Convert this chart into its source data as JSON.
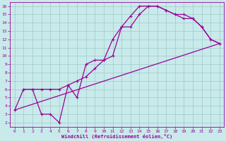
{
  "xlabel": "Windchill (Refroidissement éolien,°C)",
  "bg_color": "#c8eaea",
  "grid_color": "#a0c8c8",
  "line_color": "#990099",
  "xlim": [
    -0.5,
    23.5
  ],
  "ylim": [
    1.5,
    16.5
  ],
  "xticks": [
    0,
    1,
    2,
    3,
    4,
    5,
    6,
    7,
    8,
    9,
    10,
    11,
    12,
    13,
    14,
    15,
    16,
    17,
    18,
    19,
    20,
    21,
    22,
    23
  ],
  "yticks": [
    2,
    3,
    4,
    5,
    6,
    7,
    8,
    9,
    10,
    11,
    12,
    13,
    14,
    15,
    16
  ],
  "line1_x": [
    1,
    2,
    3,
    4,
    5,
    6,
    7,
    8,
    9,
    10,
    11,
    12,
    13,
    14,
    15,
    16,
    17,
    18,
    19,
    20,
    21,
    22,
    23
  ],
  "line1_y": [
    6.0,
    6.0,
    6.0,
    6.0,
    6.0,
    6.5,
    7.0,
    7.5,
    8.5,
    9.5,
    10.0,
    13.5,
    13.5,
    15.0,
    16.0,
    16.0,
    15.5,
    15.0,
    15.0,
    14.5,
    13.5,
    12.0,
    11.5
  ],
  "line2_x": [
    0,
    1,
    2,
    3,
    4,
    5,
    6,
    7,
    8,
    9,
    10,
    11,
    12,
    13,
    14,
    15,
    16,
    17,
    18,
    19,
    20,
    21,
    22,
    23
  ],
  "line2_y": [
    3.5,
    6.0,
    6.0,
    3.0,
    3.0,
    2.0,
    6.5,
    5.0,
    9.0,
    9.5,
    9.5,
    12.0,
    13.5,
    14.8,
    16.0,
    16.0,
    16.0,
    15.5,
    15.0,
    14.5,
    14.5,
    13.5,
    12.0,
    11.5
  ],
  "line3_x": [
    0,
    23
  ],
  "line3_y": [
    3.5,
    11.5
  ],
  "markersize": 3,
  "linewidth": 0.9
}
